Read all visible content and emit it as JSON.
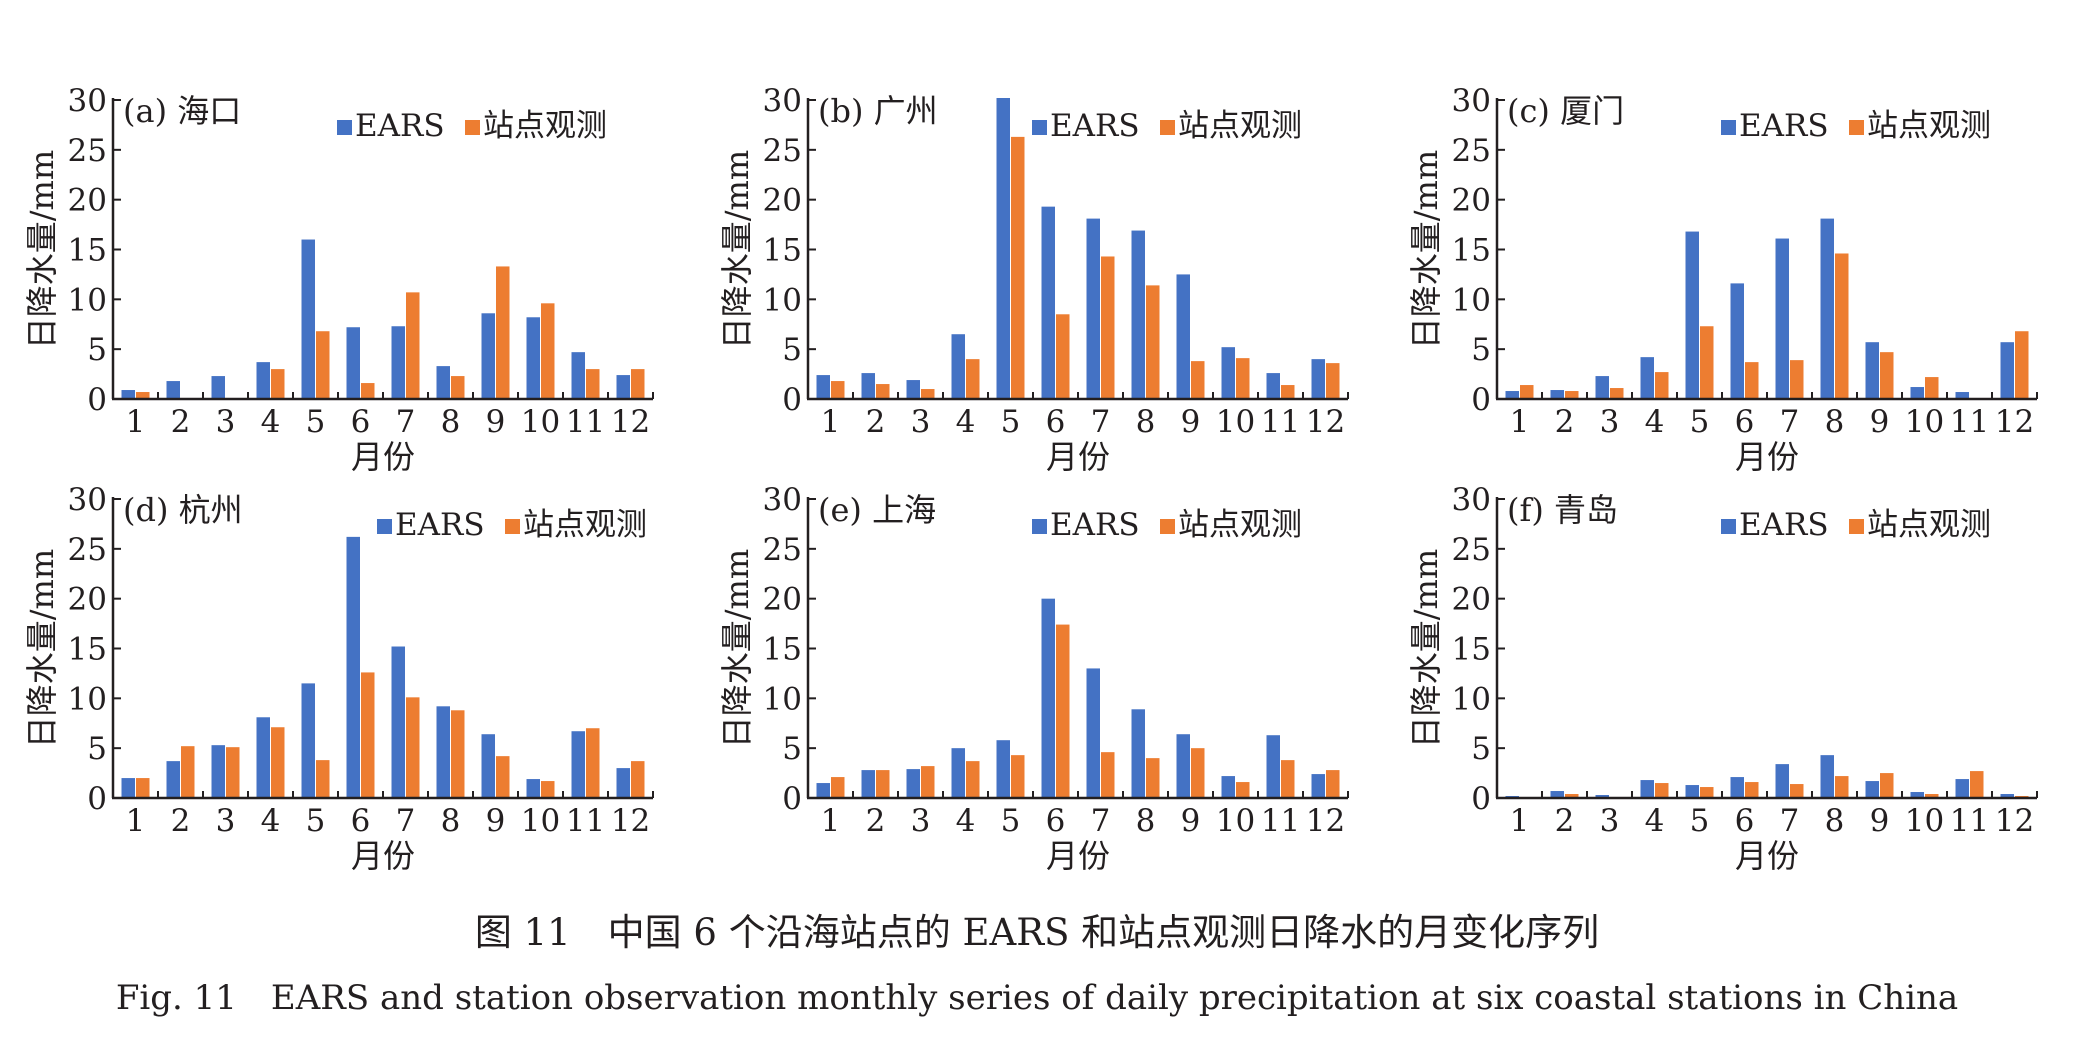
{
  "legend": {
    "ears": "EARS",
    "station": "站点观测"
  },
  "colors": {
    "ears": "#4472C4",
    "station": "#ED7D31"
  },
  "caption": {
    "cn": "图 11　中国 6 个沿海站点的 EARS 和站点观测日降水的月变化序列",
    "en": "Fig. 11　EARS and station observation monthly series of daily precipitation at six coastal stations in China"
  },
  "chart_data": [
    {
      "type": "bar",
      "title": "(a) 海口",
      "xlabel": "月份",
      "ylabel": "日降水量/mm",
      "ylim": [
        0,
        30
      ],
      "yticks": [
        0,
        5,
        10,
        15,
        20,
        25,
        30
      ],
      "grid": false,
      "legend_position": "top-right",
      "categories": [
        "1",
        "2",
        "3",
        "4",
        "5",
        "6",
        "7",
        "8",
        "9",
        "10",
        "11",
        "12"
      ],
      "series": [
        {
          "name": "EARS",
          "values": [
            0.9,
            1.8,
            2.3,
            3.7,
            16.0,
            7.2,
            7.3,
            3.3,
            8.6,
            8.2,
            4.7,
            2.4
          ]
        },
        {
          "name": "站点观测",
          "values": [
            0.7,
            0.1,
            0.1,
            3.0,
            6.8,
            1.6,
            10.7,
            2.3,
            13.3,
            9.6,
            3.0,
            3.0
          ]
        }
      ]
    },
    {
      "type": "bar",
      "title": "(b) 广州",
      "xlabel": "月份",
      "ylabel": "日降水量/mm",
      "ylim": [
        0,
        30
      ],
      "yticks": [
        0,
        5,
        10,
        15,
        20,
        25,
        30
      ],
      "grid": false,
      "legend_position": "top-right",
      "categories": [
        "1",
        "2",
        "3",
        "4",
        "5",
        "6",
        "7",
        "8",
        "9",
        "10",
        "11",
        "12"
      ],
      "series": [
        {
          "name": "EARS",
          "values": [
            2.4,
            2.6,
            1.9,
            6.5,
            30.2,
            19.3,
            18.1,
            16.9,
            12.5,
            5.2,
            2.6,
            4.0
          ]
        },
        {
          "name": "站点观测",
          "values": [
            1.8,
            1.5,
            1.0,
            4.0,
            26.3,
            8.5,
            14.3,
            11.4,
            3.8,
            4.1,
            1.4,
            3.6
          ]
        }
      ]
    },
    {
      "type": "bar",
      "title": "(c) 厦门",
      "xlabel": "月份",
      "ylabel": "日降水量/mm",
      "ylim": [
        0,
        30
      ],
      "yticks": [
        0,
        5,
        10,
        15,
        20,
        25,
        30
      ],
      "grid": false,
      "legend_position": "top-right",
      "categories": [
        "1",
        "2",
        "3",
        "4",
        "5",
        "6",
        "7",
        "8",
        "9",
        "10",
        "11",
        "12"
      ],
      "series": [
        {
          "name": "EARS",
          "values": [
            0.8,
            0.9,
            2.3,
            4.2,
            16.8,
            11.6,
            16.1,
            18.1,
            5.7,
            1.2,
            0.7,
            5.7
          ]
        },
        {
          "name": "站点观测",
          "values": [
            1.4,
            0.8,
            1.1,
            2.7,
            7.3,
            3.7,
            3.9,
            14.6,
            4.7,
            2.2,
            0.1,
            6.8
          ]
        }
      ]
    },
    {
      "type": "bar",
      "title": "(d) 杭州",
      "xlabel": "月份",
      "ylabel": "日降水量/mm",
      "ylim": [
        0,
        30
      ],
      "yticks": [
        0,
        5,
        10,
        15,
        20,
        25,
        30
      ],
      "grid": false,
      "legend_position": "top-right",
      "categories": [
        "1",
        "2",
        "3",
        "4",
        "5",
        "6",
        "7",
        "8",
        "9",
        "10",
        "11",
        "12"
      ],
      "series": [
        {
          "name": "EARS",
          "values": [
            2.0,
            3.7,
            5.3,
            8.1,
            11.5,
            26.2,
            15.2,
            9.2,
            6.4,
            1.9,
            6.7,
            3.0
          ]
        },
        {
          "name": "站点观测",
          "values": [
            2.0,
            5.2,
            5.1,
            7.1,
            3.8,
            12.6,
            10.1,
            8.8,
            4.2,
            1.7,
            7.0,
            3.7
          ]
        }
      ]
    },
    {
      "type": "bar",
      "title": "(e) 上海",
      "xlabel": "月份",
      "ylabel": "日降水量/mm",
      "ylim": [
        0,
        30
      ],
      "yticks": [
        0,
        5,
        10,
        15,
        20,
        25,
        30
      ],
      "grid": false,
      "legend_position": "top-right",
      "categories": [
        "1",
        "2",
        "3",
        "4",
        "5",
        "6",
        "7",
        "8",
        "9",
        "10",
        "11",
        "12"
      ],
      "series": [
        {
          "name": "EARS",
          "values": [
            1.5,
            2.8,
            2.9,
            5.0,
            5.8,
            20.0,
            13.0,
            8.9,
            6.4,
            2.2,
            6.3,
            2.4
          ]
        },
        {
          "name": "站点观测",
          "values": [
            2.1,
            2.8,
            3.2,
            3.7,
            4.3,
            17.4,
            4.6,
            4.0,
            5.0,
            1.6,
            3.8,
            2.8
          ]
        }
      ]
    },
    {
      "type": "bar",
      "title": "(f) 青岛",
      "xlabel": "月份",
      "ylabel": "日降水量/mm",
      "ylim": [
        0,
        30
      ],
      "yticks": [
        0,
        5,
        10,
        15,
        20,
        25,
        30
      ],
      "grid": false,
      "legend_position": "top-right",
      "categories": [
        "1",
        "2",
        "3",
        "4",
        "5",
        "6",
        "7",
        "8",
        "9",
        "10",
        "11",
        "12"
      ],
      "series": [
        {
          "name": "EARS",
          "values": [
            0.2,
            0.7,
            0.3,
            1.8,
            1.3,
            2.1,
            3.4,
            4.3,
            1.7,
            0.6,
            1.9,
            0.4
          ]
        },
        {
          "name": "站点观测",
          "values": [
            0.1,
            0.4,
            0.1,
            1.5,
            1.1,
            1.6,
            1.4,
            2.2,
            2.5,
            0.4,
            2.7,
            0.2
          ]
        }
      ]
    }
  ]
}
